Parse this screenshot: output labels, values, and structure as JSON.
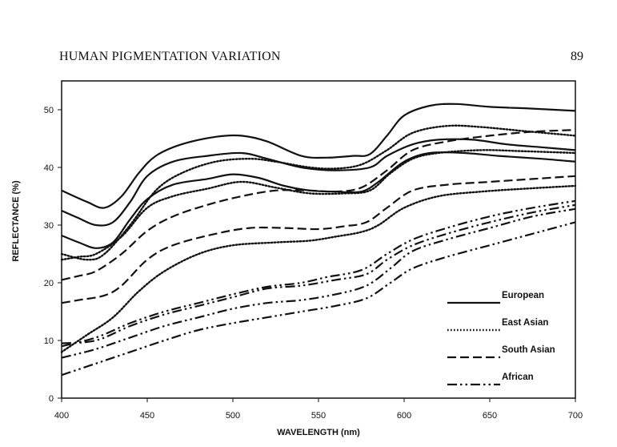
{
  "page": {
    "running_title": "HUMAN PIGMENTATION VARIATION",
    "page_number": "89"
  },
  "colors": {
    "ink": "#111111",
    "background": "#ffffff"
  },
  "chart_data": {
    "type": "line",
    "title": "",
    "xlabel": "WAVELENGTH (nm)",
    "ylabel": "REFLECTANCE (%)",
    "xlim": [
      400,
      700
    ],
    "ylim": [
      0,
      55
    ],
    "xticks": [
      "400",
      "450",
      "500",
      "550",
      "600",
      "650",
      "700"
    ],
    "yticks": [
      "0",
      "10",
      "20",
      "30",
      "40",
      "50"
    ],
    "grid": false,
    "legend_position": "lower-right",
    "legend": [
      {
        "label": "European",
        "style": "solid"
      },
      {
        "label": "East Asian",
        "style": "dotted"
      },
      {
        "label": "South Asian",
        "style": "dashed"
      },
      {
        "label": "African",
        "style": "dashdot"
      }
    ],
    "series": [
      {
        "group": "European",
        "style": "solid",
        "points": [
          [
            400,
            36
          ],
          [
            415,
            34
          ],
          [
            425,
            33
          ],
          [
            435,
            35
          ],
          [
            445,
            39
          ],
          [
            455,
            42
          ],
          [
            470,
            44
          ],
          [
            490,
            45.3
          ],
          [
            505,
            45.5
          ],
          [
            520,
            44.5
          ],
          [
            540,
            42
          ],
          [
            555,
            41.7
          ],
          [
            570,
            42
          ],
          [
            580,
            42.3
          ],
          [
            590,
            45.5
          ],
          [
            600,
            49
          ],
          [
            615,
            50.7
          ],
          [
            630,
            51
          ],
          [
            650,
            50.5
          ],
          [
            675,
            50.2
          ],
          [
            700,
            49.8
          ]
        ]
      },
      {
        "group": "European",
        "style": "solid",
        "points": [
          [
            400,
            32.5
          ],
          [
            410,
            31.2
          ],
          [
            420,
            30
          ],
          [
            430,
            30.5
          ],
          [
            440,
            34
          ],
          [
            450,
            38.5
          ],
          [
            465,
            41
          ],
          [
            485,
            42
          ],
          [
            505,
            42.5
          ],
          [
            520,
            41.5
          ],
          [
            540,
            40
          ],
          [
            560,
            39.5
          ],
          [
            580,
            40
          ],
          [
            590,
            42
          ],
          [
            605,
            44
          ],
          [
            620,
            44.8
          ],
          [
            640,
            44.8
          ],
          [
            660,
            44
          ],
          [
            680,
            43.5
          ],
          [
            700,
            43
          ]
        ]
      },
      {
        "group": "European",
        "style": "solid",
        "points": [
          [
            400,
            28.2
          ],
          [
            410,
            27
          ],
          [
            420,
            26
          ],
          [
            430,
            27
          ],
          [
            440,
            31
          ],
          [
            450,
            34.5
          ],
          [
            465,
            37
          ],
          [
            485,
            38
          ],
          [
            500,
            38.8
          ],
          [
            515,
            38.2
          ],
          [
            530,
            36.8
          ],
          [
            545,
            36
          ],
          [
            560,
            35.8
          ],
          [
            575,
            35.8
          ],
          [
            585,
            37.5
          ],
          [
            600,
            41
          ],
          [
            615,
            42.5
          ],
          [
            635,
            42.5
          ],
          [
            655,
            42
          ],
          [
            680,
            41.5
          ],
          [
            700,
            41
          ]
        ]
      },
      {
        "group": "East Asian",
        "style": "dotted",
        "points": [
          [
            400,
            25
          ],
          [
            415,
            24
          ],
          [
            425,
            25
          ],
          [
            440,
            30
          ],
          [
            455,
            36
          ],
          [
            470,
            39
          ],
          [
            490,
            41
          ],
          [
            510,
            41.5
          ],
          [
            525,
            41
          ],
          [
            545,
            40
          ],
          [
            560,
            39.8
          ],
          [
            575,
            40.5
          ],
          [
            590,
            43
          ],
          [
            605,
            46
          ],
          [
            625,
            47.2
          ],
          [
            645,
            47
          ],
          [
            670,
            46.3
          ],
          [
            700,
            45.5
          ]
        ]
      },
      {
        "group": "East Asian",
        "style": "dotted",
        "points": [
          [
            400,
            24
          ],
          [
            410,
            24.5
          ],
          [
            420,
            25
          ],
          [
            435,
            28
          ],
          [
            450,
            33
          ],
          [
            465,
            35
          ],
          [
            485,
            36.3
          ],
          [
            505,
            37.5
          ],
          [
            525,
            36.5
          ],
          [
            545,
            35.5
          ],
          [
            565,
            35.5
          ],
          [
            580,
            36
          ],
          [
            592,
            39
          ],
          [
            605,
            41.5
          ],
          [
            620,
            42.5
          ],
          [
            645,
            43
          ],
          [
            670,
            42.8
          ],
          [
            700,
            42.5
          ]
        ]
      },
      {
        "group": "East Asian",
        "style": "dotted",
        "points": [
          [
            400,
            8
          ],
          [
            415,
            11
          ],
          [
            430,
            14
          ],
          [
            445,
            18.5
          ],
          [
            460,
            22
          ],
          [
            480,
            25
          ],
          [
            500,
            26.5
          ],
          [
            525,
            27
          ],
          [
            545,
            27.3
          ],
          [
            560,
            28
          ],
          [
            575,
            28.8
          ],
          [
            585,
            30
          ],
          [
            600,
            33
          ],
          [
            620,
            35
          ],
          [
            645,
            35.8
          ],
          [
            670,
            36.3
          ],
          [
            700,
            36.8
          ]
        ]
      },
      {
        "group": "South Asian",
        "style": "dashed",
        "points": [
          [
            400,
            20.5
          ],
          [
            410,
            21.2
          ],
          [
            420,
            22
          ],
          [
            435,
            25
          ],
          [
            450,
            29
          ],
          [
            465,
            31.5
          ],
          [
            485,
            33.5
          ],
          [
            505,
            35
          ],
          [
            525,
            36
          ],
          [
            545,
            36
          ],
          [
            560,
            35.8
          ],
          [
            575,
            36.5
          ],
          [
            590,
            39.5
          ],
          [
            605,
            43
          ],
          [
            625,
            44.5
          ],
          [
            650,
            45.5
          ],
          [
            675,
            46.2
          ],
          [
            700,
            46.5
          ]
        ]
      },
      {
        "group": "South Asian",
        "style": "dashed",
        "points": [
          [
            400,
            16.5
          ],
          [
            410,
            17
          ],
          [
            425,
            17.8
          ],
          [
            435,
            19.5
          ],
          [
            450,
            24
          ],
          [
            465,
            26.5
          ],
          [
            490,
            28.5
          ],
          [
            510,
            29.5
          ],
          [
            530,
            29.5
          ],
          [
            550,
            29.3
          ],
          [
            565,
            29.8
          ],
          [
            578,
            30.5
          ],
          [
            590,
            33
          ],
          [
            605,
            36
          ],
          [
            625,
            37
          ],
          [
            650,
            37.5
          ],
          [
            675,
            38
          ],
          [
            700,
            38.5
          ]
        ]
      },
      {
        "group": "African",
        "style": "dashdot",
        "points": [
          [
            400,
            9
          ],
          [
            420,
            10.5
          ],
          [
            440,
            13
          ],
          [
            460,
            15
          ],
          [
            480,
            16.5
          ],
          [
            500,
            18
          ],
          [
            520,
            19.3
          ],
          [
            540,
            20
          ],
          [
            555,
            21
          ],
          [
            575,
            22.2
          ],
          [
            590,
            25
          ],
          [
            605,
            27.5
          ],
          [
            625,
            29.5
          ],
          [
            650,
            31.5
          ],
          [
            675,
            33
          ],
          [
            700,
            34.2
          ]
        ]
      },
      {
        "group": "African",
        "style": "dashdot",
        "points": [
          [
            400,
            9.5
          ],
          [
            420,
            10
          ],
          [
            440,
            12.5
          ],
          [
            460,
            14.5
          ],
          [
            480,
            16
          ],
          [
            500,
            17.5
          ],
          [
            520,
            19
          ],
          [
            540,
            19.5
          ],
          [
            560,
            20.5
          ],
          [
            578,
            21.5
          ],
          [
            590,
            24
          ],
          [
            605,
            26.5
          ],
          [
            625,
            28.5
          ],
          [
            650,
            30.5
          ],
          [
            675,
            32.2
          ],
          [
            700,
            33.5
          ]
        ]
      },
      {
        "group": "African",
        "style": "dashdot",
        "points": [
          [
            400,
            7
          ],
          [
            420,
            8.5
          ],
          [
            440,
            10.5
          ],
          [
            460,
            12.5
          ],
          [
            480,
            14
          ],
          [
            500,
            15.5
          ],
          [
            520,
            16.5
          ],
          [
            540,
            17
          ],
          [
            560,
            18
          ],
          [
            578,
            19.5
          ],
          [
            592,
            22.5
          ],
          [
            605,
            25.5
          ],
          [
            625,
            27.5
          ],
          [
            650,
            29.5
          ],
          [
            675,
            31.5
          ],
          [
            700,
            32.8
          ]
        ]
      },
      {
        "group": "African",
        "style": "dashdot",
        "points": [
          [
            400,
            4
          ],
          [
            420,
            6
          ],
          [
            440,
            8
          ],
          [
            460,
            10
          ],
          [
            480,
            11.8
          ],
          [
            500,
            13
          ],
          [
            520,
            14
          ],
          [
            540,
            15
          ],
          [
            560,
            16
          ],
          [
            578,
            17.3
          ],
          [
            592,
            20
          ],
          [
            605,
            22.5
          ],
          [
            625,
            24.5
          ],
          [
            650,
            26.5
          ],
          [
            675,
            28.5
          ],
          [
            700,
            30.5
          ]
        ]
      }
    ]
  }
}
